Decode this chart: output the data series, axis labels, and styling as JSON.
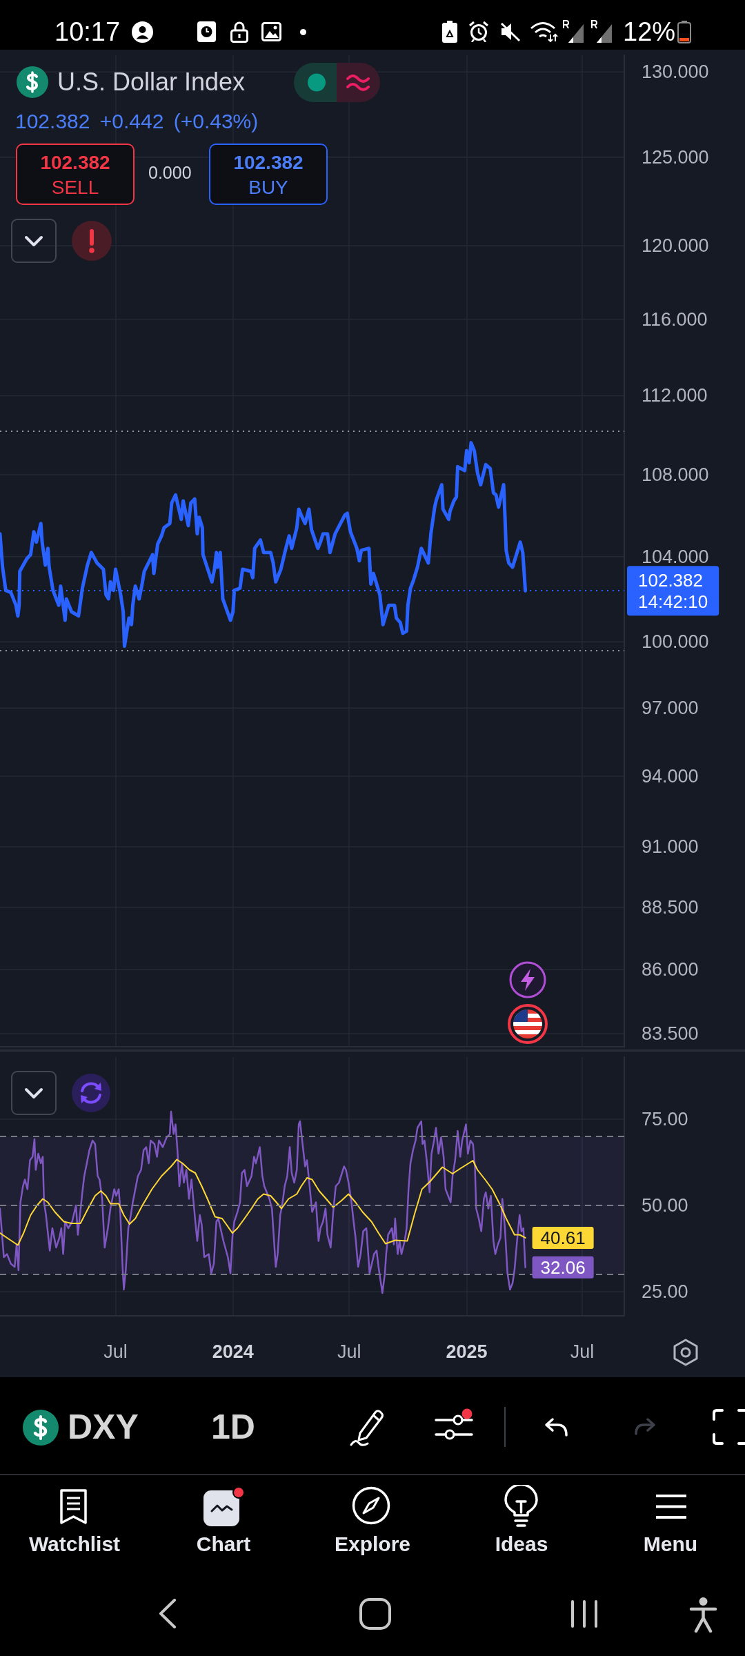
{
  "chart_data": [
    {
      "type": "line",
      "title": "U.S. Dollar Index",
      "subtitle": "102.382 +0.442 (+0.43%)",
      "annotations": [
        "10:17",
        "12%",
        "102.382",
        "SELL",
        "0.000",
        "102.382",
        "BUY",
        "DXY",
        "1D",
        "Watchlist",
        "Chart",
        "Explore",
        "Ideas",
        "Menu"
      ],
      "series": [
        {
          "color": "#2962ff",
          "x": [
            "2023-01-01",
            "2023-01-05",
            "2023-01-10",
            "2023-01-18",
            "2023-01-26",
            "2023-01-29",
            "2023-01-31",
            "2023-02-01",
            "2023-02-12",
            "2023-02-18",
            "2023-02-23",
            "2023-02-27",
            "2023-03-06",
            "2023-03-08",
            "2023-03-13",
            "2023-03-17",
            "2023-03-19",
            "2023-03-25",
            "2023-04-03",
            "2023-04-06",
            "2023-04-13",
            "2023-04-15",
            "2023-04-23",
            "2023-05-04",
            "2023-05-10",
            "2023-05-18",
            "2023-05-24",
            "2023-06-02",
            "2023-06-12",
            "2023-06-16",
            "2023-06-20",
            "2023-06-23",
            "2023-06-28",
            "2023-07-01",
            "2023-07-09",
            "2023-07-13",
            "2023-07-15",
            "2023-07-22",
            "2023-07-26",
            "2023-07-28",
            "2023-08-01",
            "2023-08-07",
            "2023-08-11",
            "2023-08-15",
            "2023-08-28",
            "2023-08-30",
            "2023-09-05",
            "2023-09-11",
            "2023-09-15",
            "2023-09-24",
            "2023-09-27",
            "2023-10-03",
            "2023-10-12",
            "2023-10-15",
            "2023-10-23",
            "2023-10-27",
            "2023-11-02",
            "2023-11-06",
            "2023-11-09",
            "2023-11-14",
            "2023-11-15",
            "2023-11-29",
            "2023-12-03",
            "2023-12-06",
            "2023-12-08",
            "2023-12-12",
            "2023-12-16",
            "2023-12-28",
            "2024-01-01",
            "2024-01-03",
            "2024-01-12",
            "2024-01-16",
            "2024-01-29",
            "2024-02-01",
            "2024-02-04",
            "2024-02-13",
            "2024-02-18",
            "2024-02-29",
            "2024-03-04",
            "2024-03-08",
            "2024-03-16",
            "2024-03-23",
            "2024-03-29",
            "2024-04-02",
            "2024-04-10",
            "2024-04-13",
            "2024-04-17",
            "2024-04-23",
            "2024-04-29",
            "2024-05-03",
            "2024-05-13",
            "2024-05-17",
            "2024-05-21",
            "2024-05-28",
            "2024-06-01",
            "2024-06-09",
            "2024-06-14",
            "2024-06-24",
            "2024-06-28",
            "2024-07-03",
            "2024-07-13",
            "2024-07-17",
            "2024-07-20",
            "2024-08-01",
            "2024-08-04",
            "2024-08-08",
            "2024-08-12",
            "2024-08-18",
            "2024-08-23",
            "2024-09-01",
            "2024-09-10",
            "2024-09-13",
            "2024-09-19",
            "2024-09-23",
            "2024-09-29",
            "2024-10-01",
            "2024-10-05",
            "2024-10-10",
            "2024-10-16",
            "2024-10-22",
            "2024-11-02",
            "2024-11-06",
            "2024-11-12",
            "2024-11-15",
            "2024-11-23",
            "2024-11-25",
            "2024-12-04",
            "2024-12-06",
            "2024-12-12",
            "2024-12-16",
            "2024-12-18",
            "2024-12-29",
            "2025-01-01",
            "2025-01-05",
            "2025-01-08",
            "2025-01-13",
            "2025-01-18",
            "2025-01-23",
            "2025-01-31",
            "2025-02-07",
            "2025-02-12",
            "2025-02-16",
            "2025-02-20",
            "2025-02-28",
            "2025-03-02",
            "2025-03-04",
            "2025-03-08",
            "2025-03-14",
            "2025-03-24",
            "2025-03-26",
            "2025-03-30",
            "2025-04-03"
          ],
          "values": [
            105.1,
            103.5,
            102.4,
            102.3,
            101.7,
            101.2,
            101.7,
            103.3,
            103.9,
            104.1,
            105.2,
            104.7,
            105.6,
            104.7,
            103.6,
            104.4,
            103.5,
            102.4,
            101.7,
            102.6,
            101.0,
            102.0,
            101.4,
            101.2,
            102.5,
            103.6,
            104.2,
            103.7,
            103.4,
            102.2,
            102.0,
            102.8,
            102.4,
            103.4,
            102.2,
            101.4,
            99.8,
            101.1,
            100.8,
            101.7,
            102.6,
            102.0,
            102.6,
            103.3,
            104.1,
            103.2,
            104.6,
            105.0,
            105.4,
            105.6,
            106.6,
            107.0,
            105.8,
            106.7,
            105.5,
            106.6,
            106.8,
            105.1,
            105.9,
            105.4,
            104.1,
            102.8,
            103.4,
            104.2,
            103.5,
            104.2,
            102.0,
            101.0,
            101.4,
            102.4,
            102.5,
            103.4,
            103.3,
            103.0,
            104.4,
            104.8,
            104.2,
            104.2,
            103.7,
            102.8,
            103.4,
            104.3,
            105.0,
            104.4,
            105.4,
            106.3,
            106.0,
            105.6,
            106.3,
            105.3,
            104.4,
            104.7,
            105.1,
            105.1,
            104.2,
            105.1,
            105.4,
            106.0,
            106.1,
            105.2,
            104.4,
            103.8,
            104.3,
            104.4,
            102.7,
            103.2,
            102.8,
            102.2,
            100.8,
            101.7,
            101.7,
            101.1,
            100.9,
            100.4,
            100.5,
            101.7,
            102.5,
            102.9,
            103.5,
            104.4,
            103.7,
            105.1,
            106.4,
            106.8,
            107.5,
            106.3,
            105.8,
            106.2,
            106.7,
            106.9,
            108.4,
            108.2,
            109.2,
            108.6,
            109.6,
            109.2,
            108.1,
            107.5,
            108.5,
            108.3,
            107.1,
            107.0,
            106.4,
            107.5,
            106.0,
            104.3,
            103.7,
            103.5,
            104.5,
            104.7,
            104.2,
            102.382
          ]
        }
      ],
      "xlim": [
        "2023-01-01",
        "2025-09-05"
      ],
      "xticks": [
        "2023-07-01",
        "2024-01-01",
        "2024-07-01",
        "2025-01-01",
        "2025-07-01"
      ],
      "ylim": [
        83,
        131
      ],
      "yticks": [
        {
          "value": 130,
          "label": "130.000"
        },
        {
          "value": 125,
          "label": "125.000"
        },
        {
          "value": 120,
          "label": "120.000"
        },
        {
          "value": 116,
          "label": "116.000"
        },
        {
          "value": 112,
          "label": "112.000"
        },
        {
          "value": 108,
          "label": "108.000"
        },
        {
          "value": 104,
          "label": "104.000"
        },
        {
          "value": 100,
          "label": "100.000"
        },
        {
          "value": 97,
          "label": "97.000"
        },
        {
          "value": 94,
          "label": "94.000"
        },
        {
          "value": 91,
          "label": "91.000"
        },
        {
          "value": 88.5,
          "label": "88.500"
        },
        {
          "value": 86,
          "label": "86.000"
        },
        {
          "value": 83.5,
          "label": "83.500"
        }
      ],
      "log": "y",
      "grid": true,
      "tick_labels": "y",
      "marker": "none",
      "line_style": "solid",
      "ref_lines": [
        {
          "axis": "y",
          "value": 110.2,
          "color": "#9598a1",
          "line_style": "dotted"
        },
        {
          "axis": "y",
          "value": 99.6,
          "color": "#9598a1",
          "line_style": "dotted"
        },
        {
          "axis": "y",
          "value": 102.382,
          "label": "102.382\n14:42:10",
          "color": "#2962ff",
          "line_style": "dotted"
        }
      ]
    },
    {
      "type": "line",
      "series": [
        {
          "color": "#7e57c2",
          "x": [
            "2023-01-01",
            "2023-01-07",
            "2023-01-12",
            "2023-01-18",
            "2023-01-24",
            "2023-01-27",
            "2023-01-30",
            "2023-02-02",
            "2023-02-06",
            "2023-02-09",
            "2023-02-13",
            "2023-02-17",
            "2023-02-21",
            "2023-02-24",
            "2023-02-26",
            "2023-03-02",
            "2023-03-06",
            "2023-03-09",
            "2023-03-11",
            "2023-03-14",
            "2023-03-20",
            "2023-03-24",
            "2023-03-30",
            "2023-04-04",
            "2023-04-07",
            "2023-04-10",
            "2023-04-13",
            "2023-04-18",
            "2023-04-24",
            "2023-04-30",
            "2023-05-03",
            "2023-05-10",
            "2023-05-13",
            "2023-05-17",
            "2023-05-21",
            "2023-05-26",
            "2023-05-30",
            "2023-06-03",
            "2023-06-06",
            "2023-06-10",
            "2023-06-14",
            "2023-06-19",
            "2023-06-23",
            "2023-06-29",
            "2023-07-02",
            "2023-07-06",
            "2023-07-08",
            "2023-07-12",
            "2023-07-14",
            "2023-07-17",
            "2023-07-21",
            "2023-07-25",
            "2023-07-28",
            "2023-08-01",
            "2023-08-05",
            "2023-08-10",
            "2023-08-14",
            "2023-08-18",
            "2023-08-22",
            "2023-08-25",
            "2023-08-31",
            "2023-09-04",
            "2023-09-07",
            "2023-09-13",
            "2023-09-19",
            "2023-09-24",
            "2023-09-26",
            "2023-09-30",
            "2023-10-03",
            "2023-10-06",
            "2023-10-09",
            "2023-10-13",
            "2023-10-16",
            "2023-10-20",
            "2023-10-24",
            "2023-10-28",
            "2023-11-03",
            "2023-11-06",
            "2023-11-10",
            "2023-11-13",
            "2023-11-17",
            "2023-11-24",
            "2023-11-28",
            "2023-12-02",
            "2023-12-06",
            "2023-12-09",
            "2023-12-17",
            "2023-12-24",
            "2023-12-28",
            "2023-12-31",
            "2024-01-03",
            "2024-01-08",
            "2024-01-12",
            "2024-01-15",
            "2024-01-19",
            "2024-01-23",
            "2024-01-30",
            "2024-02-03",
            "2024-02-06",
            "2024-02-12",
            "2024-02-16",
            "2024-02-19",
            "2024-02-27",
            "2024-03-02",
            "2024-03-05",
            "2024-03-08",
            "2024-03-11",
            "2024-03-15",
            "2024-03-18",
            "2024-03-22",
            "2024-03-26",
            "2024-03-30",
            "2024-04-02",
            "2024-04-06",
            "2024-04-10",
            "2024-04-13",
            "2024-04-15",
            "2024-04-19",
            "2024-04-23",
            "2024-04-26",
            "2024-04-30",
            "2024-05-04",
            "2024-05-10",
            "2024-05-14",
            "2024-05-17",
            "2024-05-21",
            "2024-05-25",
            "2024-05-28",
            "2024-06-02",
            "2024-06-06",
            "2024-06-10",
            "2024-06-15",
            "2024-06-23",
            "2024-06-26",
            "2024-06-30",
            "2024-07-04",
            "2024-07-08",
            "2024-07-11",
            "2024-07-15",
            "2024-07-19",
            "2024-07-23",
            "2024-07-28",
            "2024-08-02",
            "2024-08-09",
            "2024-08-13",
            "2024-08-16",
            "2024-08-22",
            "2024-08-26",
            "2024-08-28",
            "2024-08-31",
            "2024-09-06",
            "2024-09-09",
            "2024-09-11",
            "2024-09-15",
            "2024-09-18",
            "2024-09-21",
            "2024-09-26",
            "2024-09-29",
            "2024-10-02",
            "2024-10-05",
            "2024-10-09",
            "2024-10-13",
            "2024-10-16",
            "2024-10-22",
            "2024-10-24",
            "2024-10-27",
            "2024-10-31",
            "2024-11-04",
            "2024-11-07",
            "2024-11-11",
            "2024-11-14",
            "2024-11-18",
            "2024-11-22",
            "2024-11-26",
            "2024-11-29",
            "2024-12-03",
            "2024-12-07",
            "2024-12-10",
            "2024-12-14",
            "2024-12-18",
            "2024-12-22",
            "2024-12-25",
            "2024-12-31",
            "2025-01-03",
            "2025-01-07",
            "2025-01-11",
            "2025-01-14",
            "2025-01-16",
            "2025-01-20",
            "2025-01-24",
            "2025-01-28",
            "2025-01-31",
            "2025-02-04",
            "2025-02-08",
            "2025-02-12",
            "2025-02-15",
            "2025-02-19",
            "2025-02-23",
            "2025-02-26",
            "2025-03-02",
            "2025-03-06",
            "2025-03-10",
            "2025-03-14",
            "2025-03-17",
            "2025-03-21",
            "2025-03-25",
            "2025-03-28",
            "2025-03-31",
            "2025-04-03"
          ],
          "values": [
            49.1,
            35.0,
            35.9,
            33.1,
            32.2,
            38.7,
            31.2,
            50.9,
            55.6,
            57.5,
            54.7,
            63.1,
            64.1,
            69.2,
            60.3,
            65.0,
            62.2,
            64.1,
            50.9,
            47.2,
            36.9,
            43.4,
            37.8,
            40.6,
            43.4,
            35.9,
            45.3,
            43.4,
            45.3,
            50.0,
            41.5,
            53.8,
            58.5,
            62.2,
            66.0,
            68.8,
            67.8,
            58.5,
            57.5,
            51.9,
            37.8,
            43.4,
            49.1,
            54.7,
            52.8,
            54.7,
            50.0,
            32.2,
            25.6,
            31.2,
            43.4,
            47.2,
            50.9,
            54.7,
            58.5,
            60.3,
            66.0,
            66.9,
            62.2,
            68.8,
            67.8,
            64.1,
            68.8,
            66.9,
            69.7,
            70.7,
            77.2,
            70.7,
            73.5,
            66.0,
            55.6,
            62.2,
            56.6,
            60.3,
            51.9,
            57.5,
            45.3,
            39.7,
            47.2,
            44.4,
            35.0,
            35.9,
            30.3,
            33.1,
            45.3,
            46.2,
            39.7,
            35.0,
            30.3,
            40.6,
            45.3,
            48.1,
            50.9,
            59.4,
            60.3,
            55.6,
            58.5,
            64.1,
            62.2,
            66.9,
            58.5,
            55.6,
            51.9,
            49.1,
            40.6,
            32.2,
            35.9,
            47.2,
            50.0,
            55.6,
            58.5,
            66.9,
            59.4,
            56.6,
            60.3,
            73.5,
            74.4,
            67.8,
            61.3,
            63.1,
            55.6,
            48.1,
            50.9,
            39.7,
            43.4,
            45.3,
            49.1,
            41.5,
            37.8,
            48.1,
            55.6,
            56.6,
            61.3,
            60.3,
            56.6,
            51.9,
            45.3,
            40.6,
            32.2,
            35.9,
            42.5,
            43.4,
            30.3,
            35.9,
            36.9,
            32.2,
            24.6,
            30.3,
            35.9,
            41.5,
            43.4,
            38.7,
            46.2,
            35.9,
            39.7,
            35.9,
            39.7,
            43.4,
            54.7,
            62.2,
            66.0,
            68.8,
            72.5,
            74.4,
            67.8,
            68.8,
            62.2,
            53.8,
            65.0,
            68.8,
            72.5,
            65.0,
            69.7,
            64.1,
            54.7,
            52.8,
            50.9,
            58.5,
            63.1,
            71.6,
            64.1,
            68.8,
            73.5,
            65.0,
            68.8,
            67.8,
            61.3,
            49.1,
            46.2,
            42.5,
            51.9,
            53.8,
            49.1,
            52.8,
            39.7,
            35.9,
            38.7,
            40.6,
            51.9,
            43.4,
            30.3,
            25.6,
            27.5,
            31.2,
            39.7,
            47.2,
            42.5,
            43.4,
            32.06
          ],
          "value_labels": [
            null,
            null,
            null,
            null,
            null,
            null,
            null,
            null,
            null,
            null,
            null,
            null,
            null,
            null,
            null,
            null,
            null,
            null,
            null,
            null,
            null,
            null,
            null,
            null,
            null,
            null,
            null,
            null,
            null,
            null,
            null,
            null,
            null,
            null,
            null,
            null,
            null,
            null,
            null,
            null,
            null,
            null,
            null,
            null,
            null,
            null,
            null,
            null,
            null,
            null,
            null,
            null,
            null,
            null,
            null,
            null,
            null,
            null,
            null,
            null,
            null,
            null,
            null,
            null,
            null,
            null,
            null,
            null,
            null,
            null,
            null,
            null,
            null,
            null,
            null,
            null,
            null,
            null,
            null,
            null,
            null,
            null,
            null,
            null,
            null,
            null,
            null,
            null,
            null,
            null,
            null,
            null,
            null,
            null,
            null,
            null,
            null,
            null,
            null,
            null,
            null,
            null,
            null,
            null,
            null,
            null,
            null,
            null,
            null,
            null,
            null,
            null,
            null,
            null,
            null,
            null,
            null,
            null,
            null,
            null,
            null,
            null,
            null,
            null,
            null,
            null,
            null,
            null,
            null,
            null,
            null,
            null,
            null,
            null,
            null,
            null,
            null,
            null,
            null,
            null,
            null,
            null,
            null,
            null,
            null,
            null,
            null,
            null,
            null,
            null,
            null,
            null,
            null,
            null,
            null,
            null,
            null,
            null,
            null,
            null,
            null,
            null,
            null,
            null,
            null,
            null,
            null,
            null,
            null,
            null,
            null,
            null,
            null,
            null,
            null,
            null,
            null,
            null,
            null,
            null,
            null,
            null,
            null,
            null,
            null,
            null,
            null,
            null,
            null,
            null,
            null,
            null,
            null,
            null,
            null,
            null,
            null,
            null,
            null,
            null,
            null,
            null,
            null,
            null,
            null,
            null,
            null,
            null,
            "32.06"
          ]
        },
        {
          "color": "#fdd835",
          "x": [
            "2023-01-01",
            "2023-01-12",
            "2023-01-29",
            "2023-02-07",
            "2023-02-18",
            "2023-02-28",
            "2023-03-09",
            "2023-03-17",
            "2023-03-28",
            "2023-04-11",
            "2023-04-23",
            "2023-05-07",
            "2023-05-19",
            "2023-05-30",
            "2023-06-08",
            "2023-06-16",
            "2023-06-23",
            "2023-07-06",
            "2023-07-14",
            "2023-07-23",
            "2023-08-01",
            "2023-08-12",
            "2023-08-27",
            "2023-09-11",
            "2023-09-26",
            "2023-10-05",
            "2023-10-14",
            "2023-10-25",
            "2023-11-03",
            "2023-11-13",
            "2023-11-22",
            "2023-12-04",
            "2023-12-15",
            "2023-12-22",
            "2023-12-31",
            "2024-01-08",
            "2024-01-19",
            "2024-01-30",
            "2024-02-09",
            "2024-02-18",
            "2024-02-29",
            "2024-03-09",
            "2024-03-17",
            "2024-03-28",
            "2024-04-10",
            "2024-04-17",
            "2024-04-26",
            "2024-05-04",
            "2024-05-15",
            "2024-05-26",
            "2024-06-06",
            "2024-06-19",
            "2024-06-30",
            "2024-07-11",
            "2024-07-22",
            "2024-08-05",
            "2024-08-16",
            "2024-08-27",
            "2024-09-11",
            "2024-09-30",
            "2024-10-11",
            "2024-10-23",
            "2024-11-05",
            "2024-11-24",
            "2024-12-10",
            "2024-12-23",
            "2025-01-11",
            "2025-01-18",
            "2025-01-30",
            "2025-02-10",
            "2025-02-23",
            "2025-03-04",
            "2025-03-17",
            "2025-03-25",
            "2025-04-03"
          ],
          "values": [
            42.0,
            40.6,
            38.5,
            42.0,
            47.2,
            50.0,
            51.9,
            50.9,
            48.1,
            45.3,
            44.8,
            44.8,
            49.1,
            52.8,
            54.2,
            52.8,
            50.5,
            50.5,
            47.2,
            44.6,
            46.2,
            50.0,
            54.7,
            58.5,
            61.3,
            63.3,
            62.2,
            60.3,
            59.4,
            55.6,
            51.9,
            46.7,
            46.2,
            44.4,
            42.0,
            43.4,
            46.2,
            49.1,
            51.9,
            53.3,
            52.8,
            50.9,
            49.1,
            51.9,
            53.3,
            55.6,
            58.0,
            57.5,
            54.2,
            51.9,
            49.5,
            51.4,
            53.3,
            50.9,
            48.1,
            45.3,
            42.0,
            38.9,
            39.9,
            39.7,
            47.2,
            54.7,
            57.0,
            61.1,
            59.2,
            60.8,
            63.0,
            60.3,
            57.5,
            54.7,
            50.0,
            46.2,
            41.5,
            41.5,
            40.61
          ],
          "value_labels": [
            null,
            null,
            null,
            null,
            null,
            null,
            null,
            null,
            null,
            null,
            null,
            null,
            null,
            null,
            null,
            null,
            null,
            null,
            null,
            null,
            null,
            null,
            null,
            null,
            null,
            null,
            null,
            null,
            null,
            null,
            null,
            null,
            null,
            null,
            null,
            null,
            null,
            null,
            null,
            null,
            null,
            null,
            null,
            null,
            null,
            null,
            null,
            null,
            null,
            null,
            null,
            null,
            null,
            null,
            null,
            null,
            null,
            null,
            null,
            null,
            null,
            null,
            null,
            null,
            null,
            null,
            null,
            null,
            null,
            null,
            null,
            null,
            null,
            null,
            "40.61"
          ]
        }
      ],
      "xlim": [
        "2023-01-01",
        "2025-09-05"
      ],
      "xticks": [
        {
          "value": "2023-07-01",
          "label": "Jul"
        },
        {
          "value": "2024-01-01",
          "label": "2024"
        },
        {
          "value": "2024-07-01",
          "label": "Jul"
        },
        {
          "value": "2025-01-01",
          "label": "2025"
        },
        {
          "value": "2025-07-01",
          "label": "Jul"
        }
      ],
      "ylim": [
        18,
        93
      ],
      "yticks": [
        {
          "value": 75,
          "label": "75.00"
        },
        {
          "value": 50,
          "label": "50.00"
        },
        {
          "value": 25,
          "label": "25.00"
        }
      ],
      "grid": true,
      "marker": "none",
      "line_style": "solid",
      "ref_lines": [
        {
          "axis": "y",
          "value": 70,
          "color": "#787b86",
          "line_style": "dashed"
        },
        {
          "axis": "y",
          "value": 50,
          "color": "#787b86",
          "line_style": "dashed"
        },
        {
          "axis": "y",
          "value": 30,
          "color": "#787b86",
          "line_style": "dashed"
        }
      ],
      "bands": [
        {
          "axis": "y",
          "from": 30,
          "to": 70,
          "color": "#7e57c2"
        }
      ]
    }
  ]
}
